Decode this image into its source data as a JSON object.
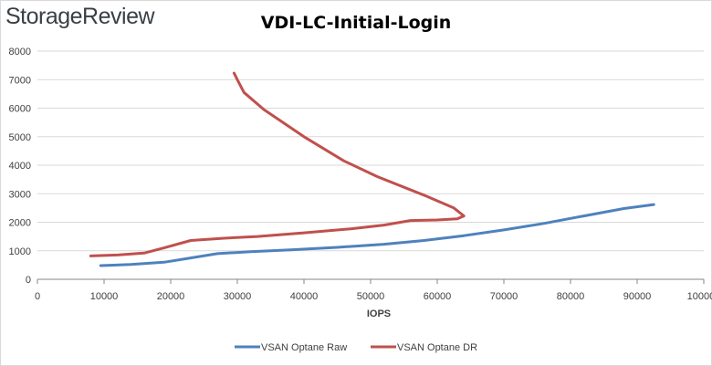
{
  "brand": "StorageReview",
  "chart_data": {
    "type": "line",
    "title": "VDI-LC-Initial-Login",
    "xlabel": "IOPS",
    "ylabel": "",
    "xlim": [
      0,
      100000
    ],
    "ylim": [
      0,
      8000
    ],
    "x_ticks": [
      0,
      10000,
      20000,
      30000,
      40000,
      50000,
      60000,
      70000,
      80000,
      90000,
      100000
    ],
    "x_tick_labels": [
      "0",
      "10000",
      "20000",
      "30000",
      "40000",
      "50000",
      "60000",
      "70000",
      "80000",
      "90000",
      "100000"
    ],
    "y_ticks": [
      0,
      1000,
      2000,
      3000,
      4000,
      5000,
      6000,
      7000,
      8000
    ],
    "grid": true,
    "legend_position": "bottom",
    "series": [
      {
        "name": "VSAN Optane Raw",
        "color": "#4f81bd",
        "points": [
          [
            9500,
            480
          ],
          [
            14000,
            520
          ],
          [
            19000,
            600
          ],
          [
            23000,
            750
          ],
          [
            27000,
            900
          ],
          [
            32000,
            970
          ],
          [
            38000,
            1030
          ],
          [
            45000,
            1120
          ],
          [
            52000,
            1230
          ],
          [
            58000,
            1360
          ],
          [
            64000,
            1530
          ],
          [
            70000,
            1730
          ],
          [
            76000,
            1960
          ],
          [
            82000,
            2220
          ],
          [
            88000,
            2480
          ],
          [
            92500,
            2620
          ]
        ]
      },
      {
        "name": "VSAN Optane DR",
        "color": "#c0504d",
        "points": [
          [
            8000,
            820
          ],
          [
            12000,
            850
          ],
          [
            16000,
            920
          ],
          [
            19000,
            1100
          ],
          [
            23000,
            1360
          ],
          [
            28000,
            1440
          ],
          [
            33000,
            1500
          ],
          [
            40000,
            1630
          ],
          [
            47000,
            1770
          ],
          [
            52000,
            1900
          ],
          [
            56000,
            2060
          ],
          [
            60000,
            2080
          ],
          [
            63000,
            2120
          ],
          [
            64000,
            2220
          ],
          [
            62500,
            2500
          ],
          [
            58000,
            2950
          ],
          [
            51000,
            3600
          ],
          [
            46000,
            4150
          ],
          [
            40000,
            5000
          ],
          [
            34000,
            5950
          ],
          [
            31000,
            6550
          ],
          [
            30000,
            7000
          ],
          [
            29500,
            7230
          ]
        ]
      }
    ]
  }
}
